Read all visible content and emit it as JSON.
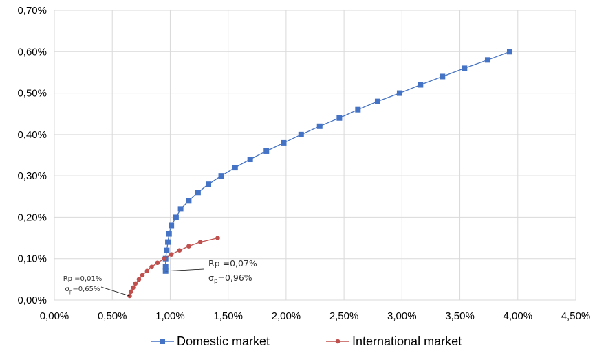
{
  "chart_data": {
    "type": "line",
    "x_tick_labels": [
      "0,00%",
      "0,50%",
      "1,00%",
      "1,50%",
      "2,00%",
      "2,50%",
      "3,00%",
      "3,50%",
      "4,00%",
      "4,50%"
    ],
    "y_tick_labels": [
      "0,00%",
      "0,10%",
      "0,20%",
      "0,30%",
      "0,40%",
      "0,50%",
      "0,60%",
      "0,70%"
    ],
    "xlim": [
      0,
      4.5
    ],
    "ylim": [
      0,
      0.7
    ],
    "grid": true,
    "legend_position": "bottom",
    "series": [
      {
        "name": "Domestic market",
        "color": "#4472C4",
        "marker": "square",
        "x": [
          0.96,
          0.96,
          0.96,
          0.97,
          0.98,
          0.99,
          1.01,
          1.05,
          1.09,
          1.16,
          1.24,
          1.33,
          1.44,
          1.56,
          1.69,
          1.83,
          1.98,
          2.13,
          2.29,
          2.46,
          2.62,
          2.79,
          2.98,
          3.16,
          3.35,
          3.54,
          3.74,
          3.93
        ],
        "y": [
          0.07,
          0.08,
          0.1,
          0.12,
          0.14,
          0.16,
          0.18,
          0.2,
          0.22,
          0.24,
          0.26,
          0.28,
          0.3,
          0.32,
          0.34,
          0.36,
          0.38,
          0.4,
          0.42,
          0.44,
          0.46,
          0.48,
          0.5,
          0.52,
          0.54,
          0.56,
          0.58,
          0.6
        ]
      },
      {
        "name": "International market",
        "color": "#C0504D",
        "marker": "circle",
        "x": [
          0.65,
          0.66,
          0.68,
          0.7,
          0.73,
          0.76,
          0.8,
          0.84,
          0.89,
          0.95,
          1.01,
          1.08,
          1.16,
          1.26,
          1.41
        ],
        "y": [
          0.01,
          0.02,
          0.03,
          0.04,
          0.05,
          0.06,
          0.07,
          0.08,
          0.09,
          0.1,
          0.11,
          0.12,
          0.13,
          0.14,
          0.15
        ]
      }
    ],
    "annotations": [
      {
        "line1": "Rp =0,01%",
        "line2_symbol": "σ",
        "line2_sub": "p",
        "line2_rest": "=0,65%",
        "x": 0.65,
        "y": 0.01
      },
      {
        "line1": "Rp =0,07%",
        "line2_symbol": "σ",
        "line2_sub": "p",
        "line2_rest": "=0,96%",
        "x": 0.96,
        "y": 0.07
      }
    ]
  }
}
